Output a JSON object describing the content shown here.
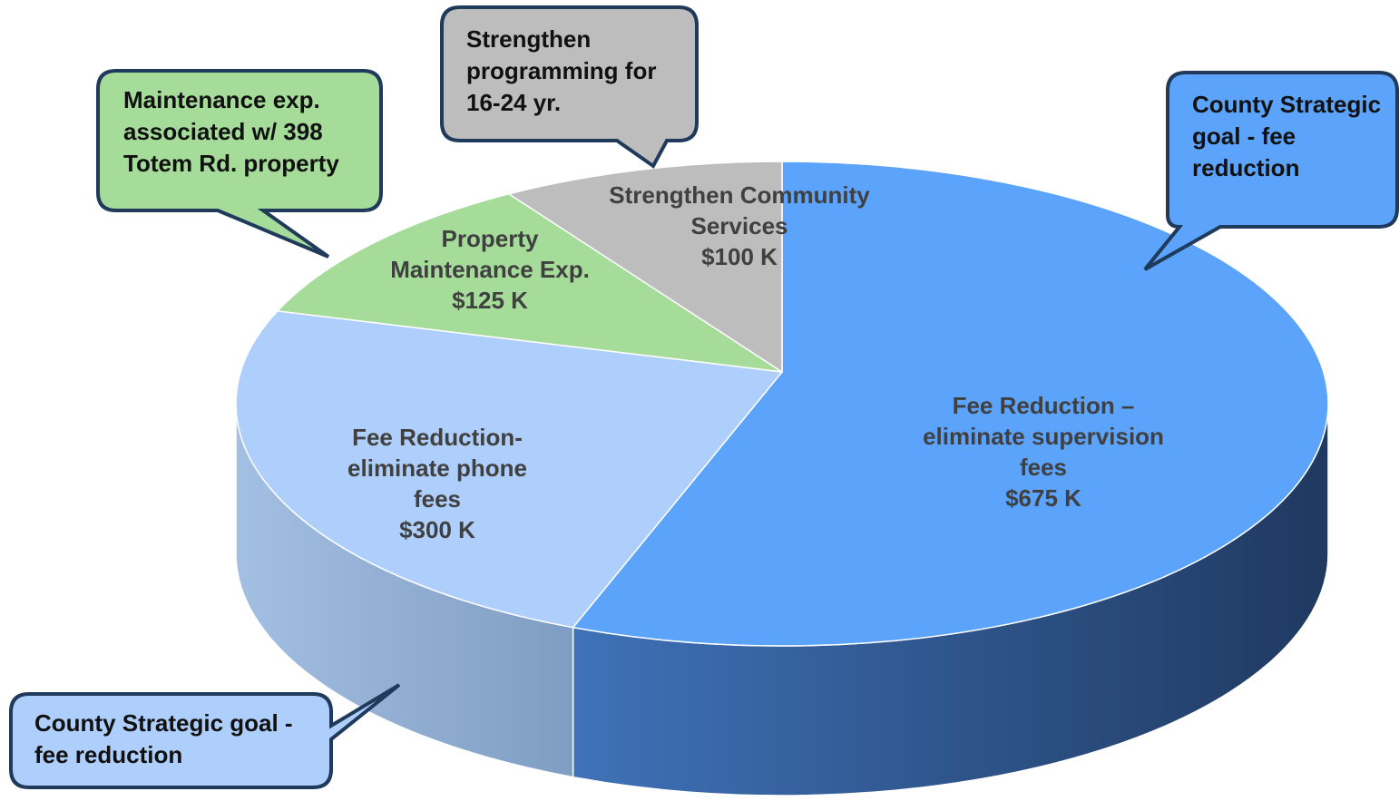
{
  "chart_data": {
    "type": "pie3d",
    "categories": [
      "Fee Reduction – eliminate supervision fees",
      "Fee Reduction- eliminate phone fees",
      "Property Maintenance Exp.",
      "Strengthen Community Services"
    ],
    "values": [
      675,
      300,
      125,
      100
    ],
    "value_labels": [
      "$675 K",
      "$300 K",
      "$125 K",
      "$100 K"
    ],
    "colors": [
      "#5ba3fb",
      "#aecffb",
      "#a6dc9a",
      "#bdbdbd"
    ],
    "annotations": [
      "Maintenance exp. associated w/ 398 Totem Rd. property",
      "Strengthen programming for 16-24 yr.",
      "County Strategic goal - fee reduction",
      "County Strategic goal - fee reduction"
    ]
  }
}
